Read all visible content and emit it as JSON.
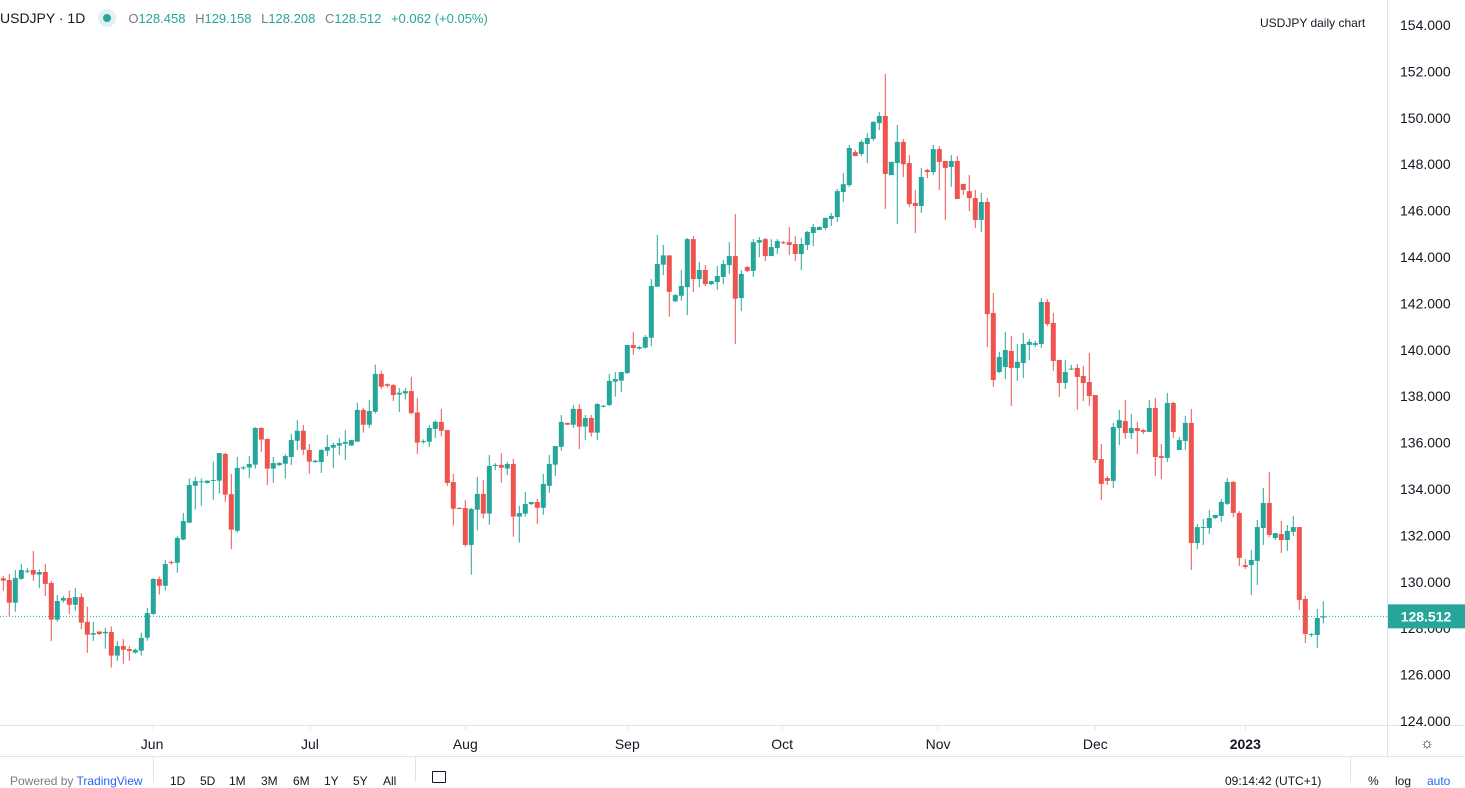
{
  "header": {
    "symbol": "USDJPY · 1D",
    "open_label": "O",
    "open": "128.458",
    "high_label": "H",
    "high": "129.158",
    "low_label": "L",
    "low": "128.208",
    "close_label": "C",
    "close": "128.512",
    "change": "+0.062 (+0.05%)",
    "status_icon": "market-open-dot"
  },
  "annotation": "USDJPY daily chart",
  "colors": {
    "up": "#26a69a",
    "down": "#ef5350",
    "grid": "#f0f3fa",
    "axis_border": "#e0e3eb",
    "last_price_bg": "#26a69a"
  },
  "bottom_bar": {
    "powered_prefix": "Powered by ",
    "powered_brand": "TradingView",
    "ranges": [
      "1D",
      "5D",
      "1M",
      "3M",
      "6M",
      "1Y",
      "5Y",
      "All"
    ],
    "time": "09:14:42 (UTC+1)",
    "percent": "%",
    "log": "log",
    "auto": "auto",
    "calendar_icon": "calendar-icon",
    "settings_icon": "gear-icon"
  },
  "chart_data": {
    "type": "candlestick",
    "title": "USDJPY daily chart",
    "interval": "1D",
    "ylim": [
      123.4,
      155.2
    ],
    "y_ticks": [
      "124.000",
      "126.000",
      "128.000",
      "130.000",
      "132.000",
      "134.000",
      "136.000",
      "138.000",
      "140.000",
      "142.000",
      "144.000",
      "146.000",
      "148.000",
      "150.000",
      "152.000",
      "154.000"
    ],
    "x_ticks": [
      "Jun",
      "Jul",
      "Aug",
      "Sep",
      "Oct",
      "Nov",
      "Dec",
      "2023"
    ],
    "last_price": "128.512",
    "grid": false,
    "candles_ohlc": [
      [
        130.15,
        130.25,
        129.62,
        130.05
      ],
      [
        130.08,
        130.34,
        128.53,
        129.1
      ],
      [
        129.1,
        130.51,
        128.71,
        130.16
      ],
      [
        130.13,
        130.77,
        130.08,
        130.51
      ],
      [
        130.45,
        130.58,
        130.36,
        130.48
      ],
      [
        130.51,
        131.33,
        130.05,
        130.31
      ],
      [
        130.31,
        130.54,
        129.73,
        130.42
      ],
      [
        130.42,
        130.77,
        129.39,
        129.91
      ],
      [
        129.95,
        130.03,
        127.45,
        128.37
      ],
      [
        128.37,
        129.43,
        128.28,
        129.17
      ],
      [
        129.19,
        129.39,
        129.1,
        129.3
      ],
      [
        129.3,
        129.62,
        128.61,
        129.01
      ],
      [
        129.01,
        129.73,
        128.75,
        129.34
      ],
      [
        129.34,
        129.5,
        127.95,
        128.24
      ],
      [
        128.27,
        128.93,
        126.94,
        127.72
      ],
      [
        127.72,
        128.27,
        127.45,
        127.79
      ],
      [
        127.86,
        127.86,
        127.71,
        127.75
      ],
      [
        127.78,
        128.02,
        127.12,
        127.84
      ],
      [
        127.84,
        128.07,
        126.3,
        126.82
      ],
      [
        126.82,
        127.45,
        126.6,
        127.23
      ],
      [
        127.23,
        127.53,
        126.47,
        127.07
      ],
      [
        127.1,
        127.23,
        126.6,
        127.02
      ],
      [
        126.95,
        127.12,
        126.9,
        127.07
      ],
      [
        127.03,
        127.81,
        126.82,
        127.58
      ],
      [
        127.59,
        128.88,
        127.46,
        128.65
      ],
      [
        128.61,
        130.16,
        128.58,
        130.12
      ],
      [
        130.12,
        130.22,
        129.45,
        129.83
      ],
      [
        129.83,
        130.94,
        129.62,
        130.77
      ],
      [
        130.85,
        130.91,
        130.74,
        130.81
      ],
      [
        130.82,
        131.97,
        130.39,
        131.89
      ],
      [
        131.82,
        132.97,
        131.79,
        132.62
      ],
      [
        132.55,
        134.45,
        132.52,
        134.17
      ],
      [
        134.14,
        134.52,
        133.11,
        134.34
      ],
      [
        134.3,
        134.45,
        133.28,
        134.33
      ],
      [
        134.26,
        134.37,
        134.23,
        134.36
      ],
      [
        134.36,
        135.18,
        133.54,
        134.39
      ],
      [
        134.36,
        135.55,
        133.8,
        135.55
      ],
      [
        135.51,
        135.57,
        133.45,
        133.76
      ],
      [
        133.78,
        134.65,
        131.41,
        132.25
      ],
      [
        132.2,
        135.38,
        132.12,
        134.91
      ],
      [
        134.89,
        134.99,
        134.82,
        134.93
      ],
      [
        134.93,
        135.42,
        134.47,
        135.08
      ],
      [
        135.05,
        136.67,
        134.88,
        136.63
      ],
      [
        136.63,
        136.67,
        135.6,
        136.13
      ],
      [
        136.16,
        136.16,
        134.17,
        134.88
      ],
      [
        134.88,
        135.38,
        134.26,
        135.12
      ],
      [
        135.03,
        135.16,
        134.99,
        135.12
      ],
      [
        135.09,
        135.51,
        134.45,
        135.42
      ],
      [
        135.38,
        136.37,
        135.03,
        136.11
      ],
      [
        136.08,
        136.97,
        135.68,
        136.51
      ],
      [
        136.51,
        136.76,
        135.46,
        135.69
      ],
      [
        135.68,
        135.94,
        134.65,
        135.18
      ],
      [
        135.16,
        135.25,
        135.13,
        135.22
      ],
      [
        135.16,
        135.72,
        134.69,
        135.68
      ],
      [
        135.65,
        136.33,
        135.42,
        135.81
      ],
      [
        135.78,
        136.0,
        134.89,
        135.9
      ],
      [
        135.87,
        136.2,
        135.47,
        135.98
      ],
      [
        135.95,
        136.54,
        135.25,
        136.03
      ],
      [
        135.87,
        136.11,
        135.87,
        136.11
      ],
      [
        136.04,
        137.72,
        136.04,
        137.41
      ],
      [
        137.41,
        137.49,
        136.43,
        136.77
      ],
      [
        136.77,
        137.84,
        136.64,
        137.36
      ],
      [
        137.33,
        139.36,
        137.25,
        138.96
      ],
      [
        138.96,
        139.1,
        138.32,
        138.41
      ],
      [
        138.52,
        138.55,
        138.37,
        138.45
      ],
      [
        138.48,
        138.52,
        137.79,
        138.05
      ],
      [
        138.07,
        138.35,
        137.32,
        138.15
      ],
      [
        138.12,
        138.35,
        137.85,
        138.22
      ],
      [
        138.22,
        138.83,
        137.23,
        137.27
      ],
      [
        137.3,
        137.92,
        135.51,
        136.0
      ],
      [
        136.04,
        136.14,
        135.95,
        136.07
      ],
      [
        136.04,
        136.76,
        135.82,
        136.63
      ],
      [
        136.59,
        136.95,
        136.2,
        136.9
      ],
      [
        136.89,
        137.45,
        136.26,
        136.51
      ],
      [
        136.54,
        136.54,
        134.14,
        134.26
      ],
      [
        134.3,
        134.65,
        132.42,
        133.15
      ],
      [
        133.18,
        133.22,
        133.14,
        133.15
      ],
      [
        133.18,
        133.52,
        131.51,
        131.59
      ],
      [
        131.59,
        133.18,
        130.31,
        133.14
      ],
      [
        133.11,
        134.52,
        132.21,
        133.79
      ],
      [
        133.79,
        134.39,
        132.72,
        132.94
      ],
      [
        132.94,
        135.47,
        132.46,
        134.99
      ],
      [
        134.99,
        135.11,
        134.82,
        135.04
      ],
      [
        135.04,
        135.55,
        134.27,
        134.92
      ],
      [
        134.88,
        135.16,
        134.6,
        135.08
      ],
      [
        135.08,
        135.3,
        131.94,
        132.81
      ],
      [
        132.81,
        133.28,
        131.69,
        132.96
      ],
      [
        132.94,
        133.87,
        132.81,
        133.35
      ],
      [
        133.35,
        133.44,
        133.31,
        133.44
      ],
      [
        133.44,
        133.57,
        132.5,
        133.19
      ],
      [
        133.19,
        134.65,
        132.89,
        134.22
      ],
      [
        134.14,
        135.47,
        133.84,
        135.08
      ],
      [
        135.05,
        135.85,
        134.56,
        135.85
      ],
      [
        135.82,
        137.19,
        135.65,
        136.89
      ],
      [
        136.85,
        136.85,
        136.77,
        136.77
      ],
      [
        136.77,
        137.62,
        136.64,
        137.45
      ],
      [
        137.45,
        137.66,
        135.72,
        136.69
      ],
      [
        136.69,
        137.19,
        136.11,
        137.06
      ],
      [
        137.06,
        137.19,
        136.26,
        136.43
      ],
      [
        136.43,
        137.71,
        136.11,
        137.66
      ],
      [
        137.55,
        137.62,
        137.51,
        137.59
      ],
      [
        137.62,
        138.96,
        137.58,
        138.66
      ],
      [
        138.63,
        139.04,
        137.98,
        138.74
      ],
      [
        138.67,
        139.04,
        138.18,
        139.04
      ],
      [
        139.0,
        140.21,
        138.96,
        140.21
      ],
      [
        140.21,
        140.77,
        139.78,
        140.08
      ],
      [
        140.05,
        140.16,
        140.01,
        140.12
      ],
      [
        140.09,
        140.64,
        140.05,
        140.55
      ],
      [
        140.52,
        143.05,
        140.16,
        142.75
      ],
      [
        142.72,
        144.95,
        142.72,
        143.7
      ],
      [
        143.67,
        144.52,
        143.22,
        144.07
      ],
      [
        144.07,
        144.07,
        141.43,
        142.5
      ],
      [
        142.09,
        142.4,
        142.06,
        142.36
      ],
      [
        142.33,
        143.44,
        142.12,
        142.75
      ],
      [
        142.7,
        144.82,
        141.5,
        144.77
      ],
      [
        144.77,
        144.9,
        142.49,
        143.05
      ],
      [
        143.05,
        143.78,
        142.7,
        143.44
      ],
      [
        143.44,
        143.65,
        142.75,
        142.83
      ],
      [
        142.83,
        142.96,
        142.79,
        142.96
      ],
      [
        142.92,
        143.61,
        142.58,
        143.18
      ],
      [
        143.14,
        143.87,
        142.83,
        143.7
      ],
      [
        143.65,
        144.64,
        143.27,
        144.04
      ],
      [
        144.04,
        145.85,
        140.25,
        142.2
      ],
      [
        142.23,
        143.44,
        141.67,
        143.27
      ],
      [
        143.57,
        143.61,
        143.35,
        143.4
      ],
      [
        143.4,
        144.77,
        143.14,
        144.64
      ],
      [
        144.62,
        144.86,
        143.99,
        144.73
      ],
      [
        144.77,
        144.82,
        143.83,
        144.04
      ],
      [
        144.04,
        144.77,
        144.04,
        144.43
      ],
      [
        144.39,
        144.77,
        144.13,
        144.69
      ],
      [
        144.63,
        144.69,
        144.56,
        144.6
      ],
      [
        144.64,
        145.29,
        144.08,
        144.52
      ],
      [
        144.56,
        144.9,
        143.83,
        144.13
      ],
      [
        144.13,
        144.82,
        143.44,
        144.56
      ],
      [
        144.52,
        145.12,
        144.3,
        145.08
      ],
      [
        145.03,
        145.42,
        144.47,
        145.29
      ],
      [
        145.16,
        145.33,
        145.16,
        145.29
      ],
      [
        145.25,
        145.72,
        145.16,
        145.68
      ],
      [
        145.64,
        145.9,
        145.33,
        145.77
      ],
      [
        145.72,
        146.93,
        145.51,
        146.84
      ],
      [
        146.8,
        147.62,
        146.37,
        147.14
      ],
      [
        147.1,
        148.83,
        147.02,
        148.7
      ],
      [
        148.52,
        148.61,
        148.35,
        148.35
      ],
      [
        148.44,
        149.04,
        148.35,
        148.96
      ],
      [
        148.87,
        149.34,
        148.05,
        149.13
      ],
      [
        149.09,
        149.86,
        149.0,
        149.82
      ],
      [
        149.77,
        150.25,
        149.47,
        150.08
      ],
      [
        150.08,
        151.89,
        146.07,
        147.58
      ],
      [
        147.53,
        148.1,
        147.53,
        148.1
      ],
      [
        148.05,
        149.69,
        145.42,
        148.96
      ],
      [
        148.96,
        149.09,
        147.45,
        148.0
      ],
      [
        148.05,
        148.39,
        146.15,
        146.28
      ],
      [
        146.33,
        146.89,
        145.03,
        146.2
      ],
      [
        146.2,
        147.84,
        145.9,
        147.45
      ],
      [
        147.75,
        147.8,
        147.4,
        147.66
      ],
      [
        147.66,
        148.83,
        147.53,
        148.65
      ],
      [
        148.65,
        148.78,
        146.89,
        148.1
      ],
      [
        148.14,
        148.14,
        145.59,
        147.84
      ],
      [
        147.88,
        148.39,
        147.02,
        148.14
      ],
      [
        148.14,
        148.35,
        146.5,
        146.5
      ],
      [
        147.15,
        147.15,
        146.67,
        146.89
      ],
      [
        146.84,
        147.53,
        145.98,
        146.54
      ],
      [
        146.54,
        146.89,
        145.25,
        145.59
      ],
      [
        145.6,
        146.76,
        145.08,
        146.37
      ],
      [
        146.37,
        146.54,
        140.12,
        141.54
      ],
      [
        141.59,
        142.45,
        138.4,
        138.7
      ],
      [
        139.04,
        139.91,
        139.0,
        139.69
      ],
      [
        139.26,
        140.77,
        138.74,
        139.99
      ],
      [
        139.95,
        140.6,
        137.58,
        139.22
      ],
      [
        139.22,
        140.25,
        138.66,
        139.48
      ],
      [
        139.43,
        140.73,
        138.79,
        140.25
      ],
      [
        140.21,
        140.47,
        139.56,
        140.34
      ],
      [
        140.21,
        140.38,
        140.12,
        140.29
      ],
      [
        140.25,
        142.23,
        140.08,
        142.06
      ],
      [
        142.06,
        142.19,
        141.03,
        141.11
      ],
      [
        141.16,
        141.59,
        139.09,
        139.52
      ],
      [
        139.56,
        139.56,
        137.97,
        138.57
      ],
      [
        138.57,
        139.56,
        138.31,
        139.04
      ],
      [
        139.16,
        139.35,
        139.13,
        139.19
      ],
      [
        139.22,
        139.39,
        137.41,
        138.83
      ],
      [
        138.87,
        139.3,
        137.79,
        138.57
      ],
      [
        138.61,
        139.86,
        137.58,
        138.01
      ],
      [
        138.05,
        138.05,
        135.12,
        135.25
      ],
      [
        135.29,
        135.94,
        133.53,
        134.22
      ],
      [
        134.47,
        134.56,
        134.17,
        134.35
      ],
      [
        134.35,
        136.85,
        134.04,
        136.67
      ],
      [
        136.63,
        137.41,
        135.9,
        136.97
      ],
      [
        136.93,
        137.84,
        136.16,
        136.41
      ],
      [
        136.41,
        137.23,
        136.16,
        136.63
      ],
      [
        136.63,
        136.89,
        135.51,
        136.5
      ],
      [
        136.54,
        136.59,
        136.37,
        136.46
      ],
      [
        136.46,
        137.84,
        136.46,
        137.49
      ],
      [
        137.49,
        137.92,
        134.56,
        135.38
      ],
      [
        135.42,
        135.94,
        134.43,
        135.34
      ],
      [
        135.34,
        138.14,
        135.16,
        137.71
      ],
      [
        137.71,
        137.75,
        136.2,
        136.46
      ],
      [
        135.68,
        136.24,
        135.68,
        136.11
      ],
      [
        136.07,
        137.15,
        135.68,
        136.85
      ],
      [
        136.85,
        137.45,
        130.51,
        131.67
      ],
      [
        131.67,
        132.49,
        131.41,
        132.36
      ],
      [
        132.33,
        132.71,
        131.59,
        132.36
      ],
      [
        132.32,
        133.1,
        132.06,
        132.75
      ],
      [
        132.75,
        132.88,
        132.71,
        132.88
      ],
      [
        132.84,
        133.57,
        132.58,
        133.44
      ],
      [
        133.36,
        134.47,
        133.31,
        134.3
      ],
      [
        134.3,
        134.35,
        132.79,
        132.97
      ],
      [
        132.97,
        133.05,
        130.68,
        131.03
      ],
      [
        130.72,
        130.98,
        130.55,
        130.64
      ],
      [
        130.72,
        131.37,
        129.43,
        130.94
      ],
      [
        130.9,
        132.67,
        129.86,
        132.36
      ],
      [
        132.32,
        134.04,
        131.59,
        133.4
      ],
      [
        133.4,
        134.73,
        131.93,
        132.02
      ],
      [
        131.89,
        132.1,
        131.8,
        132.1
      ],
      [
        132.06,
        132.62,
        131.24,
        131.8
      ],
      [
        131.8,
        132.45,
        131.33,
        132.19
      ],
      [
        132.15,
        132.84,
        131.97,
        132.36
      ],
      [
        132.36,
        132.36,
        128.79,
        129.22
      ],
      [
        129.26,
        129.39,
        127.36,
        127.75
      ],
      [
        127.71,
        127.79,
        127.62,
        127.75
      ],
      [
        127.71,
        128.83,
        127.15,
        128.44
      ],
      [
        128.458,
        129.158,
        128.208,
        128.512
      ]
    ]
  }
}
